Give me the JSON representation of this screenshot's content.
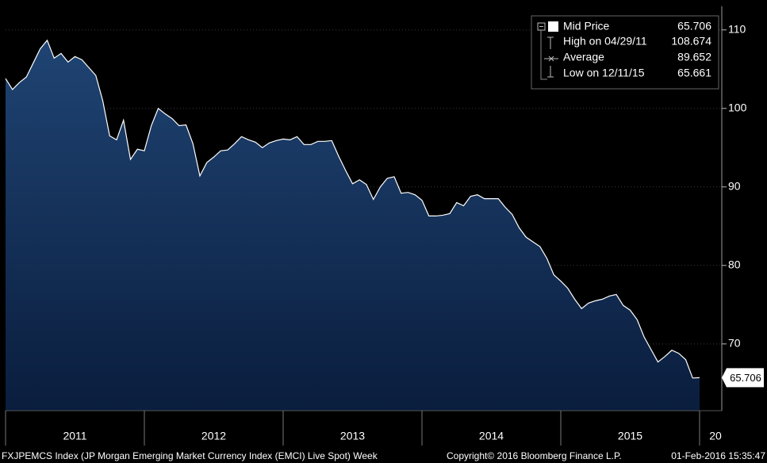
{
  "chart_data": {
    "type": "area",
    "series": [
      {
        "name": "Mid Price",
        "color": "#ffffff",
        "x": [
          2011.0,
          2011.05,
          2011.1,
          2011.15,
          2011.2,
          2011.25,
          2011.3,
          2011.35,
          2011.4,
          2011.45,
          2011.5,
          2011.55,
          2011.6,
          2011.65,
          2011.7,
          2011.75,
          2011.8,
          2011.85,
          2011.9,
          2011.95,
          2012.0,
          2012.05,
          2012.1,
          2012.15,
          2012.2,
          2012.25,
          2012.3,
          2012.35,
          2012.4,
          2012.45,
          2012.5,
          2012.55,
          2012.6,
          2012.65,
          2012.7,
          2012.75,
          2012.8,
          2012.85,
          2012.9,
          2012.95,
          2013.0,
          2013.05,
          2013.1,
          2013.15,
          2013.2,
          2013.25,
          2013.3,
          2013.35,
          2013.4,
          2013.45,
          2013.5,
          2013.55,
          2013.6,
          2013.65,
          2013.7,
          2013.75,
          2013.8,
          2013.85,
          2013.9,
          2013.95,
          2014.0,
          2014.05,
          2014.1,
          2014.15,
          2014.2,
          2014.25,
          2014.3,
          2014.35,
          2014.4,
          2014.45,
          2014.5,
          2014.55,
          2014.6,
          2014.65,
          2014.7,
          2014.75,
          2014.8,
          2014.85,
          2014.9,
          2014.95,
          2015.0,
          2015.05,
          2015.1,
          2015.15,
          2015.2,
          2015.25,
          2015.3,
          2015.35,
          2015.4,
          2015.45,
          2015.5,
          2015.55,
          2015.6,
          2015.65,
          2015.7,
          2015.75,
          2015.8,
          2015.85,
          2015.9,
          2015.95,
          2016.0
        ],
        "values": [
          103.8,
          102.4,
          103.3,
          104.0,
          105.8,
          107.6,
          108.674,
          106.4,
          107.0,
          105.9,
          106.6,
          106.2,
          105.2,
          104.2,
          101.0,
          96.5,
          96.0,
          98.5,
          93.5,
          94.8,
          94.6,
          97.8,
          100.0,
          99.3,
          98.7,
          97.8,
          97.9,
          95.5,
          91.4,
          93.1,
          93.8,
          94.6,
          94.7,
          95.5,
          96.4,
          96.0,
          95.7,
          95.0,
          95.6,
          95.9,
          96.1,
          96.0,
          96.4,
          95.4,
          95.4,
          95.8,
          95.8,
          95.9,
          93.9,
          92.1,
          90.4,
          90.9,
          90.3,
          88.4,
          90.0,
          91.1,
          91.3,
          89.2,
          89.3,
          89.0,
          88.3,
          86.3,
          86.3,
          86.4,
          86.6,
          88.0,
          87.6,
          88.8,
          89.0,
          88.5,
          88.5,
          88.5,
          87.4,
          86.5,
          84.8,
          83.6,
          83.0,
          82.4,
          80.9,
          78.8,
          78.0,
          77.1,
          75.7,
          74.5,
          75.2,
          75.5,
          75.7,
          76.1,
          76.3,
          74.9,
          74.3,
          73.1,
          70.9,
          69.3,
          67.7,
          68.4,
          69.2,
          68.8,
          68.0,
          65.661,
          65.706
        ]
      }
    ],
    "xlim": [
      2011,
      2016.16
    ],
    "xticks": [
      2011,
      2012,
      2013,
      2014,
      2015,
      {
        "value": 2016,
        "label": "20"
      }
    ],
    "ylim": [
      61.5,
      113
    ],
    "yticks": [
      70,
      80,
      90,
      100,
      110
    ],
    "legend": [
      {
        "label": "Mid Price",
        "value": 65.706
      },
      {
        "label": "High on 04/29/11",
        "value": 108.674
      },
      {
        "label": "Average",
        "value": 89.652
      },
      {
        "label": "Low on 12/11/15",
        "value": 65.661
      }
    ],
    "legend_position": "upper right",
    "footer": {
      "left": "FXJPEMCS Index (JP Morgan Emerging Market Currency Index (EMCI) Live Spot)  Week",
      "center": "Copyright© 2016 Bloomberg Finance L.P.",
      "right": "01-Feb-2016 15:35:47"
    }
  }
}
